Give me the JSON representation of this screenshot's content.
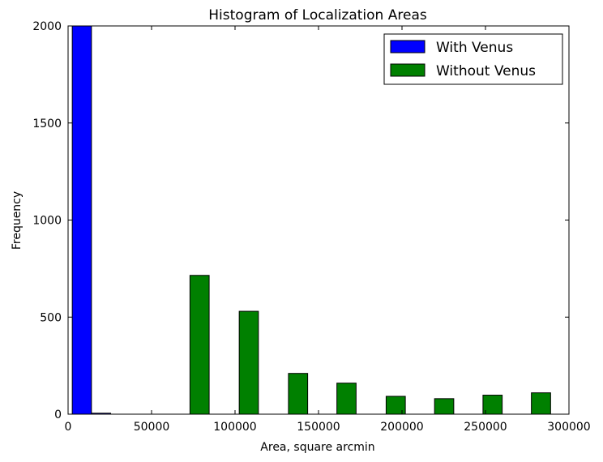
{
  "chart_data": {
    "type": "bar",
    "title": "Histogram of Localization Areas",
    "xlabel": "Area, square arcmin",
    "ylabel": "Frequency",
    "xlim": [
      0,
      300000
    ],
    "ylim": [
      0,
      2000
    ],
    "xticks": [
      "0",
      "50000",
      "100000",
      "150000",
      "200000",
      "250000",
      "300000"
    ],
    "xtick_values": [
      0,
      50000,
      100000,
      150000,
      200000,
      250000,
      300000
    ],
    "yticks": [
      "0",
      "500",
      "1000",
      "1500",
      "2000"
    ],
    "ytick_values": [
      0,
      500,
      1000,
      1500,
      2000
    ],
    "grid": false,
    "legend_position": "top-right",
    "bin_width": 12500,
    "series": [
      {
        "name": "With Venus",
        "color": "#0000ff",
        "bins": [
          {
            "x0": 2500,
            "x1": 14000,
            "value": 2000
          },
          {
            "x0": 14000,
            "x1": 25500,
            "value": 5
          }
        ]
      },
      {
        "name": "Without Venus",
        "color": "#008000",
        "bins": [
          {
            "x0": 25500,
            "x1": 37000,
            "value": 0
          },
          {
            "x0": 50000,
            "x1": 61500,
            "value": 0
          },
          {
            "x0": 61500,
            "x1": 73000,
            "value": 0
          },
          {
            "x0": 73000,
            "x1": 84500,
            "value": 715
          },
          {
            "x0": 84500,
            "x1": 96000,
            "value": 0
          },
          {
            "x0": 102500,
            "x1": 114000,
            "value": 530
          },
          {
            "x0": 114000,
            "x1": 125500,
            "value": 0
          },
          {
            "x0": 132000,
            "x1": 143500,
            "value": 210
          },
          {
            "x0": 143500,
            "x1": 155000,
            "value": 0
          },
          {
            "x0": 161000,
            "x1": 172500,
            "value": 160
          },
          {
            "x0": 172500,
            "x1": 184000,
            "value": 0
          },
          {
            "x0": 190500,
            "x1": 202000,
            "value": 92
          },
          {
            "x0": 202000,
            "x1": 213500,
            "value": 0
          },
          {
            "x0": 219500,
            "x1": 231000,
            "value": 80
          },
          {
            "x0": 231000,
            "x1": 242500,
            "value": 0
          },
          {
            "x0": 248500,
            "x1": 260000,
            "value": 98
          },
          {
            "x0": 260000,
            "x1": 271500,
            "value": 0
          },
          {
            "x0": 277500,
            "x1": 289000,
            "value": 110
          }
        ]
      }
    ]
  }
}
